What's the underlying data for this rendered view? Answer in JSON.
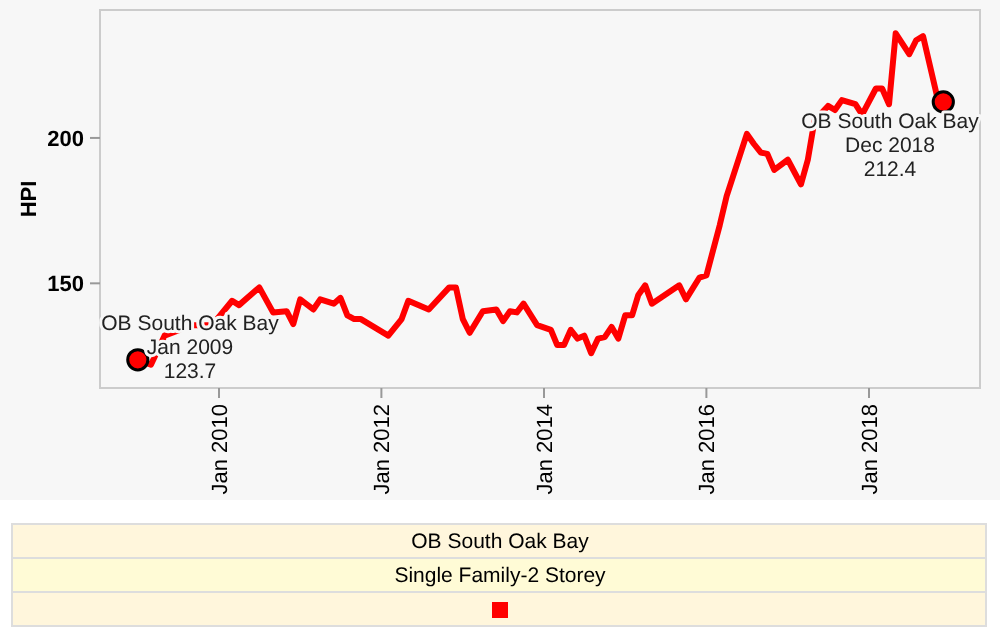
{
  "chart_data": {
    "type": "line",
    "ylabel": "HPI",
    "legend_title": "OB South Oak Bay",
    "legend": "bottom",
    "grid": false,
    "xlim": [
      "2008-07-15",
      "2019-05-15"
    ],
    "ylim": [
      114,
      244
    ],
    "xticks": [
      {
        "value": "2010-01",
        "label": "Jan 2010"
      },
      {
        "value": "2012-01",
        "label": "Jan 2012"
      },
      {
        "value": "2014-01",
        "label": "Jan 2014"
      },
      {
        "value": "2016-01",
        "label": "Jan 2016"
      },
      {
        "value": "2018-01",
        "label": "Jan 2018"
      }
    ],
    "yticks": [
      150,
      200
    ],
    "series": [
      {
        "name": "Single Family-2 Storey",
        "color": "#ff0000",
        "marker": "none",
        "x": [
          "2009-01",
          "2009-03",
          "2009-05",
          "2009-09",
          "2009-12",
          "2010-03",
          "2010-04",
          "2010-07",
          "2010-09",
          "2010-11",
          "2010-12",
          "2011-01",
          "2011-03",
          "2011-04",
          "2011-06",
          "2011-07",
          "2011-08",
          "2011-09",
          "2011-10",
          "2012-02",
          "2012-04",
          "2012-05",
          "2012-08",
          "2012-11",
          "2012-12",
          "2013-01",
          "2013-02",
          "2013-04",
          "2013-06",
          "2013-07",
          "2013-08",
          "2013-09",
          "2013-10",
          "2013-12",
          "2014-02",
          "2014-03",
          "2014-04",
          "2014-05",
          "2014-06",
          "2014-07",
          "2014-08",
          "2014-09",
          "2014-10",
          "2014-11",
          "2014-12",
          "2015-01",
          "2015-02",
          "2015-03",
          "2015-04",
          "2015-05",
          "2015-09",
          "2015-10",
          "2015-12",
          "2016-01",
          "2016-03",
          "2016-04",
          "2016-07",
          "2016-08",
          "2016-09",
          "2016-10",
          "2016-11",
          "2017-01",
          "2017-03",
          "2017-04",
          "2017-05",
          "2017-07",
          "2017-08",
          "2017-09",
          "2017-11",
          "2017-12",
          "2018-02",
          "2018-03",
          "2018-04",
          "2018-05",
          "2018-07",
          "2018-08",
          "2018-09",
          "2018-11",
          "2018-12"
        ],
        "values": [
          123.7,
          122,
          132,
          135.6,
          135.6,
          144,
          142.5,
          148.6,
          140,
          140.4,
          136,
          144.5,
          141,
          144.5,
          143,
          145,
          139,
          137.7,
          137.7,
          132,
          137.7,
          144,
          141,
          148.6,
          148.6,
          137.7,
          133,
          140.4,
          141,
          137,
          140.4,
          140,
          143,
          135.6,
          134,
          128.8,
          128.8,
          134,
          131,
          132,
          126,
          131,
          131.5,
          135,
          131,
          139,
          139,
          146,
          149.3,
          143,
          149.3,
          144.5,
          152,
          152.7,
          170,
          180,
          201.4,
          198,
          195,
          194.5,
          189,
          192.5,
          184,
          192.5,
          206,
          211,
          209.6,
          213,
          211.6,
          208,
          217,
          217,
          211.6,
          236,
          228.8,
          233.6,
          235,
          215,
          212.4
        ]
      },
      {
        "type": "scatter",
        "color": "#ff0000",
        "marker": "circle",
        "x": [
          "2009-01",
          "2018-12"
        ],
        "values": [
          123.7,
          212.4
        ]
      }
    ],
    "annotations": [
      {
        "text": "OB South Oak Bay\nJan 2009\n123.7",
        "x": "2009-01",
        "y": 123.7
      },
      {
        "text": "OB South Oak Bay\nDec 2018\n212.4",
        "x": "2018-12",
        "y": 212.4
      }
    ]
  }
}
